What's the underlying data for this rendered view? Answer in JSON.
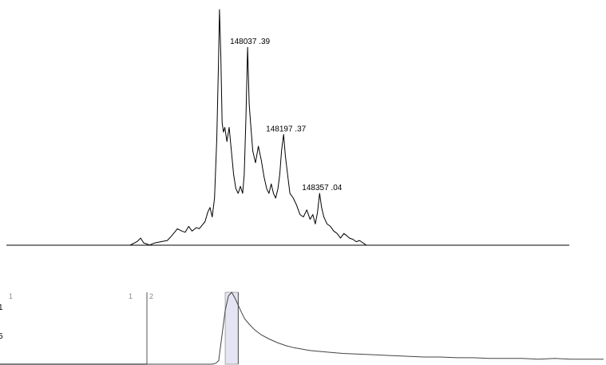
{
  "chart_data": [
    {
      "type": "line",
      "title": "",
      "xlabel": "",
      "ylabel": "",
      "peak_annotations": [
        {
          "label": "148037 .39",
          "value": 148037.39
        },
        {
          "label": "148197 .37",
          "value": 148197.37
        },
        {
          "label": "148357 .04",
          "value": 148357.04
        }
      ],
      "ylim": [
        0,
        100
      ],
      "series": [
        {
          "x": [
            147515,
            147545,
            147562,
            147575,
            147590,
            147600,
            147625,
            147652,
            147680,
            147700,
            147725,
            147745,
            147760,
            147775,
            147790,
            147810,
            147822,
            147835,
            147848,
            147860,
            147870,
            147880,
            147890,
            147900,
            147907,
            147912,
            147918,
            147924,
            147930,
            147936,
            147945,
            147955,
            147965,
            147975,
            147985,
            147995,
            148005,
            148015,
            148022,
            148030,
            148037,
            148044,
            148050,
            148060,
            148072,
            148085,
            148098,
            148110,
            148122,
            148132,
            148142,
            148152,
            148162,
            148172,
            148180,
            148188,
            148197,
            148205,
            148215,
            148225,
            148240,
            148255,
            148270,
            148285,
            148300,
            148315,
            148327,
            148338,
            148348,
            148357,
            148366,
            148376,
            148390,
            148405,
            148420,
            148435,
            148450,
            148465,
            148478,
            148490,
            148505,
            148520,
            148535,
            148550,
            148565,
            148580,
            148600,
            148620,
            148640
          ],
          "y": [
            0,
            1.5,
            3,
            1,
            0.5,
            0,
            1,
            1.5,
            2,
            4,
            7,
            6,
            5.5,
            8,
            6,
            7.5,
            7,
            8.5,
            10,
            14,
            16,
            12,
            20,
            45,
            75,
            100,
            80,
            52,
            48,
            50,
            44,
            50,
            40,
            30,
            24,
            22,
            25,
            22,
            30,
            55,
            84,
            60,
            52,
            40,
            35,
            42,
            36,
            29,
            24,
            22,
            26,
            22,
            20,
            24,
            30,
            40,
            47,
            38,
            30,
            22,
            20,
            17,
            13,
            12,
            15,
            11,
            13,
            9,
            14,
            22,
            16,
            12,
            9,
            8,
            6,
            5,
            3,
            5,
            4,
            3,
            2.5,
            1.5,
            2,
            1,
            0,
            0,
            0,
            0,
            0
          ]
        }
      ]
    },
    {
      "type": "line",
      "title": "",
      "xlabel": "",
      "ylabel": "",
      "y_ticks": [
        "1",
        "5"
      ],
      "panel_numbers": [
        "1",
        "1",
        "2"
      ],
      "highlight_range": [
        0,
        1
      ],
      "series": [
        {
          "x": [
            0,
            0.5,
            1,
            1.5,
            2,
            2.5,
            3,
            3.5,
            4,
            4.2,
            4.4,
            4.6,
            4.8,
            5.0,
            5.2,
            5.4,
            5.6,
            5.8,
            6.0,
            6.3,
            6.6,
            7.0,
            7.5,
            8.0,
            8.5,
            9.0,
            10,
            11,
            12,
            13,
            14,
            15,
            16,
            17,
            18,
            19,
            20,
            21,
            22,
            23,
            24,
            25,
            26,
            27,
            28
          ],
          "y": [
            0,
            0,
            0,
            0,
            0,
            0,
            0,
            0,
            0,
            1,
            5,
            40,
            75,
            95,
            100,
            92,
            82,
            72,
            63,
            55,
            48,
            41,
            35,
            30,
            26,
            23,
            19,
            17,
            15,
            14,
            13,
            12,
            11,
            10,
            10,
            9,
            9,
            8,
            8,
            8,
            7,
            8,
            7,
            7,
            7
          ]
        }
      ]
    }
  ]
}
